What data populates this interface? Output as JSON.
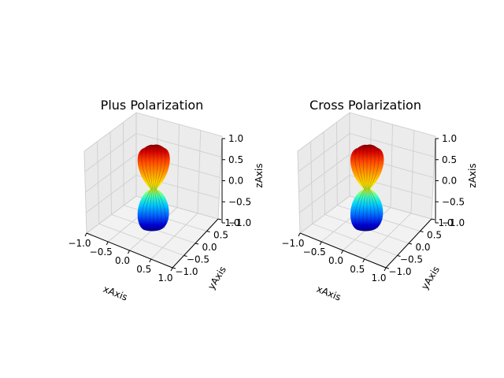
{
  "chart_data": [
    {
      "type": "surface3d",
      "title": "Plus Polarization",
      "xlabel": "xAxis",
      "ylabel": "yAxis",
      "zlabel": "zAxis",
      "x_ticks": [
        "−1.0",
        "−0.5",
        "0.0",
        "0.5",
        "1.0"
      ],
      "y_ticks": [
        "−1.0",
        "−0.5",
        "0.0",
        "0.5",
        "1.0"
      ],
      "z_ticks": [
        "−1.0",
        "−0.5",
        "0.0",
        "0.5",
        "1.0"
      ],
      "xlim": [
        -1,
        1
      ],
      "ylim": [
        -1,
        1
      ],
      "zlim": [
        -1,
        1
      ],
      "colormap": "jet",
      "grid": true,
      "pattern": "plus"
    },
    {
      "type": "surface3d",
      "title": "Cross Polarization",
      "xlabel": "xAxis",
      "ylabel": "yAxis",
      "zlabel": "zAxis",
      "x_ticks": [
        "−1.0",
        "−0.5",
        "0.0",
        "0.5",
        "1.0"
      ],
      "y_ticks": [
        "−1.0",
        "−0.5",
        "0.0",
        "0.5",
        "1.0"
      ],
      "z_ticks": [
        "−1.0",
        "−0.5",
        "0.0",
        "0.5",
        "1.0"
      ],
      "xlim": [
        -1,
        1
      ],
      "ylim": [
        -1,
        1
      ],
      "zlim": [
        -1,
        1
      ],
      "colormap": "jet",
      "grid": true,
      "pattern": "cross"
    }
  ]
}
